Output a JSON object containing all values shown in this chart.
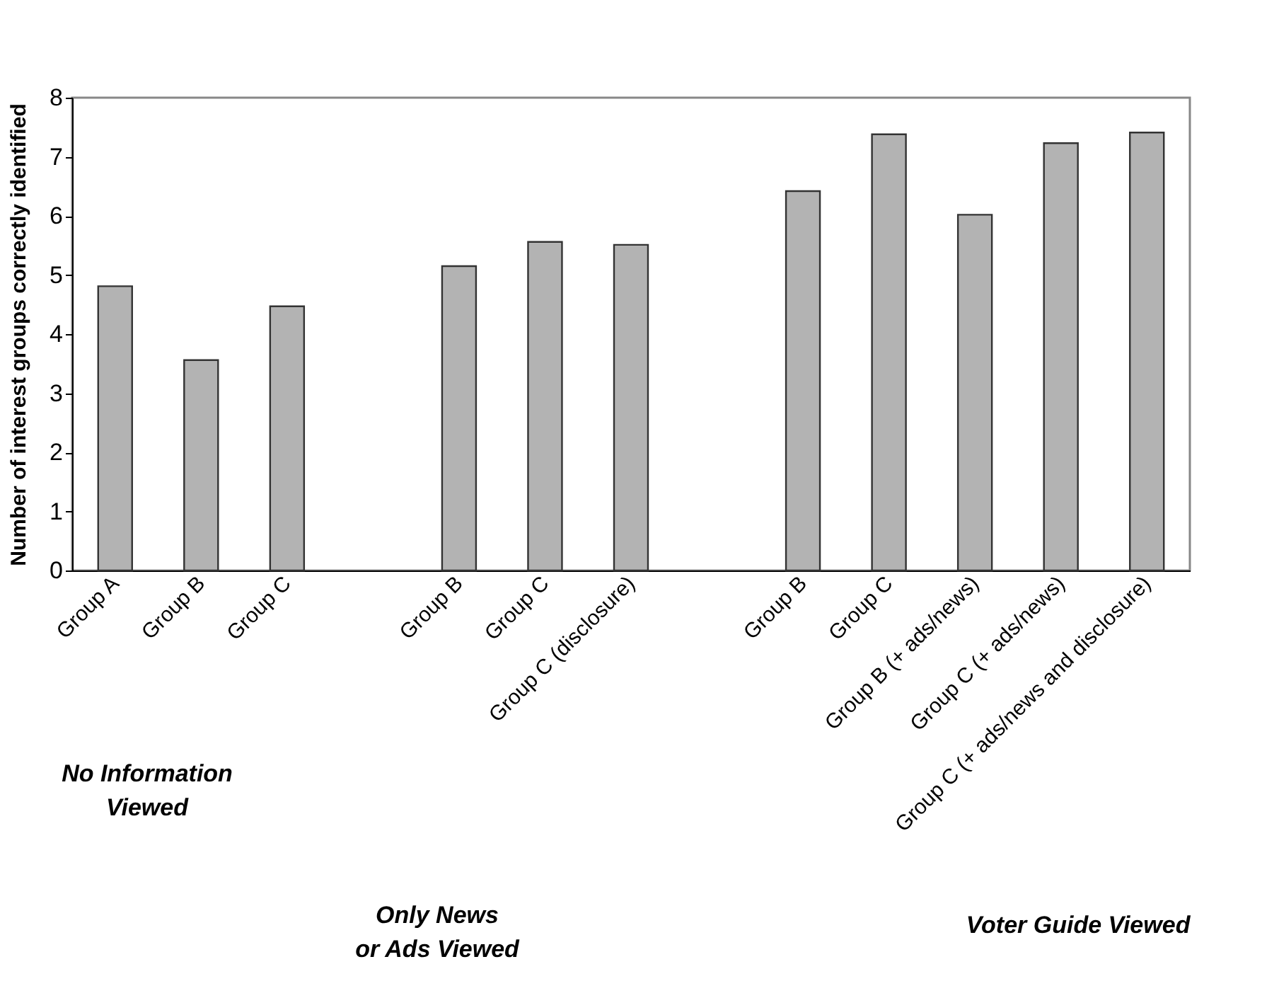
{
  "chart_data": {
    "type": "bar",
    "ylabel": "Number of interest groups correctly identified",
    "categories": [
      "Group A",
      "Group B",
      "Group C",
      null,
      "Group B",
      "Group C",
      "Group C (disclosure)",
      null,
      "Group B",
      "Group C",
      "Group B (+ ads/news)",
      "Group C (+ ads/news)",
      "Group C (+ ads/news and disclosure)"
    ],
    "values": [
      4.81,
      3.56,
      4.47,
      null,
      5.15,
      5.56,
      5.51,
      null,
      6.42,
      7.38,
      6.02,
      7.23,
      7.41
    ],
    "color": "#b3b3b3",
    "ylim": [
      0,
      8
    ],
    "yticks": [
      0,
      1,
      2,
      3,
      4,
      5,
      6,
      7,
      8
    ],
    "annotations": [
      "No Information\nViewed",
      "Only News\nor Ads Viewed",
      "Voter Guide Viewed"
    ]
  }
}
